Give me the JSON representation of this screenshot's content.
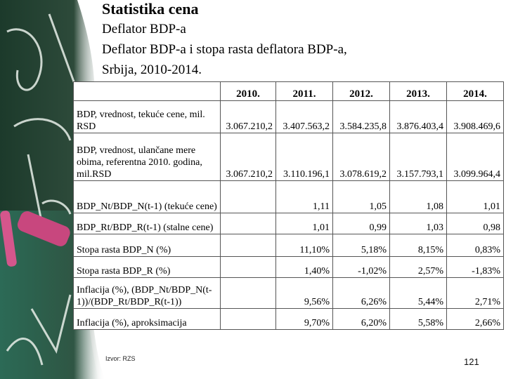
{
  "slide": {
    "title": "Statistika cena",
    "subtitle_1": "Deflator BDP-a",
    "subtitle_2": "Deflator BDP-a i stopa rasta deflatora BDP-a,",
    "subtitle_3": "Srbija, 2010-2014."
  },
  "table": {
    "years": [
      "2010.",
      "2011.",
      "2012.",
      "2013.",
      "2014."
    ],
    "rows": [
      {
        "label": "BDP, vrednost, tekuće cene, mil. RSD",
        "values": [
          "3.067.210,2",
          "3.407.563,2",
          "3.584.235,8",
          "3.876.403,4",
          "3.908.469,6"
        ]
      },
      {
        "label": "BDP, vrednost, ulančane mere obima, referentna 2010. godina, mil.RSD",
        "values": [
          "3.067.210,2",
          "3.110.196,1",
          "3.078.619,2",
          "3.157.793,1",
          "3.099.964,4"
        ]
      },
      {
        "label": "BDP_Nt/BDP_N(t-1) (tekuće cene)",
        "values": [
          "",
          "1,11",
          "1,05",
          "1,08",
          "1,01"
        ]
      },
      {
        "label": "BDP_Rt/BDP_R(t-1) (stalne cene)",
        "values": [
          "",
          "1,01",
          "0,99",
          "1,03",
          "0,98"
        ]
      },
      {
        "label": "Stopa rasta BDP_N (%)",
        "values": [
          "",
          "11,10%",
          "5,18%",
          "8,15%",
          "0,83%"
        ]
      },
      {
        "label": "Stopa rasta BDP_R (%)",
        "values": [
          "",
          "1,40%",
          "-1,02%",
          "2,57%",
          "-1,83%"
        ]
      },
      {
        "label": "Inflacija (%), (BDP_Nt/BDP_N(t-1))/(BDP_Rt/BDP_R(t-1))",
        "values": [
          "",
          "9,56%",
          "6,26%",
          "5,44%",
          "2,71%"
        ]
      },
      {
        "label": "Inflacija (%), aproksimacija",
        "values": [
          "",
          "9,70%",
          "6,20%",
          "5,58%",
          "2,66%"
        ]
      }
    ]
  },
  "footer": {
    "source": "Izvor: RZS",
    "page_number": "121"
  },
  "decor": {
    "board_color": "#1f3a2c",
    "chalk_pink": "#d4568c"
  }
}
